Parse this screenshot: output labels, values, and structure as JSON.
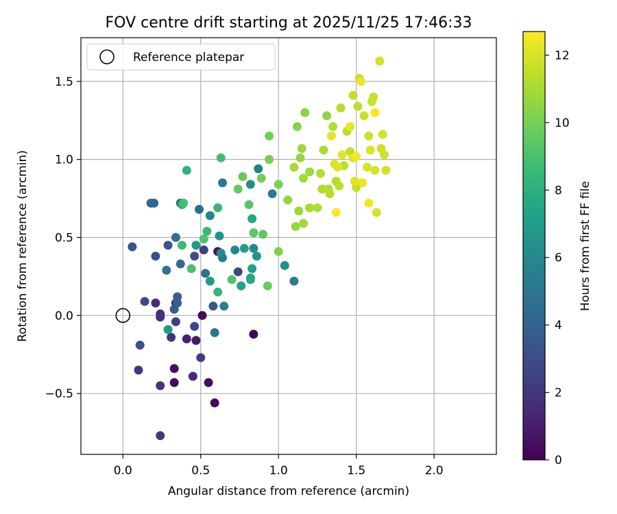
{
  "chart_data": {
    "type": "scatter",
    "title": "FOV centre drift starting at 2025/11/25 17:46:33",
    "xlabel": "Angular distance from reference (arcmin)",
    "ylabel": "Rotation from reference (arcmin)",
    "xlim": [
      -0.27,
      2.4
    ],
    "ylim": [
      -0.89,
      1.78
    ],
    "xticks": [
      0.0,
      0.5,
      1.0,
      1.5,
      2.0
    ],
    "xtick_labels": [
      "0.0",
      "0.5",
      "1.0",
      "1.5",
      "2.0"
    ],
    "yticks": [
      -0.5,
      0.0,
      0.5,
      1.0,
      1.5
    ],
    "ytick_labels": [
      "−0.5",
      "0.0",
      "0.5",
      "1.0",
      "1.5"
    ],
    "grid": true,
    "legend": {
      "position": "top-left",
      "entries": [
        "Reference platepar"
      ]
    },
    "reference_point": {
      "x": 0.0,
      "y": 0.0,
      "marker": "open-circle"
    },
    "colorbar": {
      "label": "Hours from first FF file",
      "range": [
        0,
        12.7
      ],
      "ticks": [
        0,
        2,
        4,
        6,
        8,
        10,
        12
      ],
      "tick_labels": [
        "0",
        "2",
        "4",
        "6",
        "8",
        "10",
        "12"
      ],
      "colormap": "viridis",
      "colormap_stops": [
        "#440154",
        "#482878",
        "#3e4989",
        "#31688e",
        "#26828e",
        "#1f9e89",
        "#35b779",
        "#6ece58",
        "#b5de2b",
        "#fde725"
      ]
    },
    "points": [
      {
        "x": 0.51,
        "y": 0.0,
        "t": 0.3
      },
      {
        "x": 0.84,
        "y": -0.12,
        "t": 0.2
      },
      {
        "x": 0.59,
        "y": -0.56,
        "t": 0.3
      },
      {
        "x": 0.55,
        "y": -0.43,
        "t": 0.4
      },
      {
        "x": 0.33,
        "y": -0.43,
        "t": 0.4
      },
      {
        "x": 0.33,
        "y": -0.34,
        "t": 0.5
      },
      {
        "x": 0.61,
        "y": 0.41,
        "t": 0.6
      },
      {
        "x": 0.47,
        "y": -0.16,
        "t": 0.9
      },
      {
        "x": 0.41,
        "y": -0.15,
        "t": 1.1
      },
      {
        "x": 0.34,
        "y": 0.08,
        "t": 1.2
      },
      {
        "x": 0.45,
        "y": -0.39,
        "t": 1.4
      },
      {
        "x": 0.21,
        "y": 0.08,
        "t": 1.6
      },
      {
        "x": 0.24,
        "y": 0.01,
        "t": 1.7
      },
      {
        "x": 0.24,
        "y": -0.01,
        "t": 1.8
      },
      {
        "x": 0.31,
        "y": -0.14,
        "t": 1.9
      },
      {
        "x": 0.24,
        "y": -0.45,
        "t": 1.9
      },
      {
        "x": 0.24,
        "y": -0.77,
        "t": 2.0
      },
      {
        "x": 0.1,
        "y": -0.35,
        "t": 2.1
      },
      {
        "x": 0.5,
        "y": -0.27,
        "t": 2.3
      },
      {
        "x": 0.34,
        "y": -0.04,
        "t": 2.4
      },
      {
        "x": 0.52,
        "y": 0.42,
        "t": 2.4
      },
      {
        "x": 0.46,
        "y": -0.07,
        "t": 2.6
      },
      {
        "x": 0.74,
        "y": 0.28,
        "t": 2.7
      },
      {
        "x": 0.14,
        "y": 0.09,
        "t": 2.8
      },
      {
        "x": 0.46,
        "y": 0.38,
        "t": 3.0
      },
      {
        "x": 0.21,
        "y": 0.38,
        "t": 3.1
      },
      {
        "x": 0.11,
        "y": -0.19,
        "t": 3.2
      },
      {
        "x": 0.06,
        "y": 0.44,
        "t": 3.3
      },
      {
        "x": 0.29,
        "y": 0.45,
        "t": 3.5
      },
      {
        "x": 0.58,
        "y": 0.06,
        "t": 3.6
      },
      {
        "x": 0.33,
        "y": 0.04,
        "t": 3.8
      },
      {
        "x": 0.35,
        "y": 0.12,
        "t": 3.9
      },
      {
        "x": 0.35,
        "y": 0.08,
        "t": 4.0
      },
      {
        "x": 0.18,
        "y": 0.72,
        "t": 4.1
      },
      {
        "x": 0.2,
        "y": 0.72,
        "t": 4.2
      },
      {
        "x": 0.37,
        "y": 0.72,
        "t": 4.3
      },
      {
        "x": 0.37,
        "y": 0.33,
        "t": 4.4
      },
      {
        "x": 0.49,
        "y": 0.68,
        "t": 4.5
      },
      {
        "x": 0.53,
        "y": 0.27,
        "t": 4.7
      },
      {
        "x": 0.34,
        "y": 0.5,
        "t": 4.8
      },
      {
        "x": 0.28,
        "y": 0.29,
        "t": 5.0
      },
      {
        "x": 0.59,
        "y": -0.11,
        "t": 5.0
      },
      {
        "x": 0.64,
        "y": 0.85,
        "t": 5.1
      },
      {
        "x": 0.64,
        "y": 0.37,
        "t": 5.2
      },
      {
        "x": 0.96,
        "y": 0.78,
        "t": 5.3
      },
      {
        "x": 1.1,
        "y": 0.22,
        "t": 5.4
      },
      {
        "x": 0.87,
        "y": 0.94,
        "t": 5.5
      },
      {
        "x": 0.65,
        "y": 0.06,
        "t": 5.6
      },
      {
        "x": 0.56,
        "y": 0.64,
        "t": 5.8
      },
      {
        "x": 0.72,
        "y": 0.42,
        "t": 5.9
      },
      {
        "x": 0.84,
        "y": 0.43,
        "t": 6.0
      },
      {
        "x": 0.63,
        "y": 0.4,
        "t": 6.1
      },
      {
        "x": 1.04,
        "y": 0.32,
        "t": 6.2
      },
      {
        "x": 0.82,
        "y": 0.84,
        "t": 6.3
      },
      {
        "x": 0.86,
        "y": 0.38,
        "t": 6.5
      },
      {
        "x": 0.62,
        "y": 0.51,
        "t": 6.6
      },
      {
        "x": 0.29,
        "y": -0.09,
        "t": 6.7
      },
      {
        "x": 0.47,
        "y": 0.45,
        "t": 6.8
      },
      {
        "x": 0.56,
        "y": 0.22,
        "t": 7.0
      },
      {
        "x": 0.78,
        "y": 0.43,
        "t": 7.1
      },
      {
        "x": 0.76,
        "y": 0.19,
        "t": 7.2
      },
      {
        "x": 0.83,
        "y": 0.3,
        "t": 7.3
      },
      {
        "x": 0.82,
        "y": 0.24,
        "t": 7.4
      },
      {
        "x": 0.83,
        "y": 0.62,
        "t": 7.5
      },
      {
        "x": 0.82,
        "y": 0.23,
        "t": 7.6
      },
      {
        "x": 0.38,
        "y": 0.71,
        "t": 8.0
      },
      {
        "x": 0.41,
        "y": 0.93,
        "t": 8.2
      },
      {
        "x": 0.61,
        "y": 0.15,
        "t": 8.4
      },
      {
        "x": 0.61,
        "y": 0.69,
        "t": 8.5
      },
      {
        "x": 0.54,
        "y": 0.54,
        "t": 8.6
      },
      {
        "x": 0.38,
        "y": 0.45,
        "t": 8.7
      },
      {
        "x": 0.63,
        "y": 1.01,
        "t": 8.8
      },
      {
        "x": 0.39,
        "y": 0.72,
        "t": 8.9
      },
      {
        "x": 0.44,
        "y": 0.3,
        "t": 9.0
      },
      {
        "x": 0.52,
        "y": 0.49,
        "t": 9.1
      },
      {
        "x": 0.7,
        "y": 0.23,
        "t": 9.2
      },
      {
        "x": 0.81,
        "y": 0.71,
        "t": 9.3
      },
      {
        "x": 0.84,
        "y": 0.53,
        "t": 9.4
      },
      {
        "x": 0.9,
        "y": 0.52,
        "t": 9.5
      },
      {
        "x": 0.74,
        "y": 0.81,
        "t": 9.6
      },
      {
        "x": 0.77,
        "y": 0.89,
        "t": 9.7
      },
      {
        "x": 0.93,
        "y": 0.19,
        "t": 9.8
      },
      {
        "x": 0.89,
        "y": 0.88,
        "t": 9.9
      },
      {
        "x": 0.94,
        "y": 1.0,
        "t": 10.0
      },
      {
        "x": 0.94,
        "y": 1.15,
        "t": 10.0
      },
      {
        "x": 1.0,
        "y": 0.84,
        "t": 10.1
      },
      {
        "x": 1.0,
        "y": 0.41,
        "t": 10.2
      },
      {
        "x": 1.12,
        "y": 1.21,
        "t": 10.3
      },
      {
        "x": 1.17,
        "y": 1.3,
        "t": 10.4
      },
      {
        "x": 1.31,
        "y": 1.28,
        "t": 10.5
      },
      {
        "x": 1.06,
        "y": 0.74,
        "t": 10.6
      },
      {
        "x": 1.14,
        "y": 1.01,
        "t": 10.6
      },
      {
        "x": 1.11,
        "y": 0.57,
        "t": 10.7
      },
      {
        "x": 1.13,
        "y": 0.67,
        "t": 10.7
      },
      {
        "x": 1.15,
        "y": 1.07,
        "t": 10.8
      },
      {
        "x": 1.2,
        "y": 0.92,
        "t": 10.8
      },
      {
        "x": 1.16,
        "y": 0.88,
        "t": 10.9
      },
      {
        "x": 1.16,
        "y": 0.59,
        "t": 10.9
      },
      {
        "x": 1.2,
        "y": 0.69,
        "t": 11.0
      },
      {
        "x": 1.1,
        "y": 0.95,
        "t": 11.0
      },
      {
        "x": 1.28,
        "y": 0.81,
        "t": 11.1
      },
      {
        "x": 1.25,
        "y": 0.69,
        "t": 11.1
      },
      {
        "x": 1.29,
        "y": 1.06,
        "t": 11.1
      },
      {
        "x": 1.27,
        "y": 0.91,
        "t": 11.2
      },
      {
        "x": 1.35,
        "y": 1.21,
        "t": 11.2
      },
      {
        "x": 1.32,
        "y": 0.81,
        "t": 11.2
      },
      {
        "x": 1.33,
        "y": 0.78,
        "t": 11.3
      },
      {
        "x": 1.37,
        "y": 0.86,
        "t": 11.3
      },
      {
        "x": 1.4,
        "y": 1.33,
        "t": 11.3
      },
      {
        "x": 1.44,
        "y": 1.18,
        "t": 11.4
      },
      {
        "x": 1.39,
        "y": 0.83,
        "t": 11.4
      },
      {
        "x": 1.42,
        "y": 0.96,
        "t": 11.4
      },
      {
        "x": 1.46,
        "y": 1.05,
        "t": 11.5
      },
      {
        "x": 1.48,
        "y": 1.41,
        "t": 11.5
      },
      {
        "x": 1.51,
        "y": 1.34,
        "t": 11.5
      },
      {
        "x": 1.5,
        "y": 0.82,
        "t": 11.6
      },
      {
        "x": 1.52,
        "y": 1.52,
        "t": 11.6
      },
      {
        "x": 1.55,
        "y": 1.28,
        "t": 11.6
      },
      {
        "x": 1.58,
        "y": 1.15,
        "t": 11.7
      },
      {
        "x": 1.6,
        "y": 1.37,
        "t": 11.7
      },
      {
        "x": 1.61,
        "y": 1.4,
        "t": 11.7
      },
      {
        "x": 1.66,
        "y": 1.07,
        "t": 11.8
      },
      {
        "x": 1.67,
        "y": 1.16,
        "t": 11.8
      },
      {
        "x": 1.68,
        "y": 1.03,
        "t": 11.8
      },
      {
        "x": 1.69,
        "y": 0.93,
        "t": 11.9
      },
      {
        "x": 1.63,
        "y": 0.66,
        "t": 11.9
      },
      {
        "x": 1.65,
        "y": 1.63,
        "t": 11.9
      },
      {
        "x": 1.62,
        "y": 0.93,
        "t": 12.0
      },
      {
        "x": 1.57,
        "y": 0.95,
        "t": 12.0
      },
      {
        "x": 1.59,
        "y": 1.06,
        "t": 12.0
      },
      {
        "x": 1.49,
        "y": 0.86,
        "t": 12.1
      },
      {
        "x": 1.48,
        "y": 1.01,
        "t": 12.1
      },
      {
        "x": 1.36,
        "y": 0.97,
        "t": 12.1
      },
      {
        "x": 1.38,
        "y": 0.95,
        "t": 12.2
      },
      {
        "x": 1.41,
        "y": 1.03,
        "t": 12.2
      },
      {
        "x": 1.46,
        "y": 1.21,
        "t": 12.2
      },
      {
        "x": 1.34,
        "y": 1.15,
        "t": 12.3
      },
      {
        "x": 1.53,
        "y": 1.5,
        "t": 12.4
      },
      {
        "x": 1.54,
        "y": 0.85,
        "t": 12.4
      },
      {
        "x": 1.58,
        "y": 0.72,
        "t": 12.5
      },
      {
        "x": 1.62,
        "y": 1.3,
        "t": 12.5
      },
      {
        "x": 1.37,
        "y": 0.66,
        "t": 12.6
      },
      {
        "x": 1.5,
        "y": 1.02,
        "t": 12.6
      }
    ]
  }
}
